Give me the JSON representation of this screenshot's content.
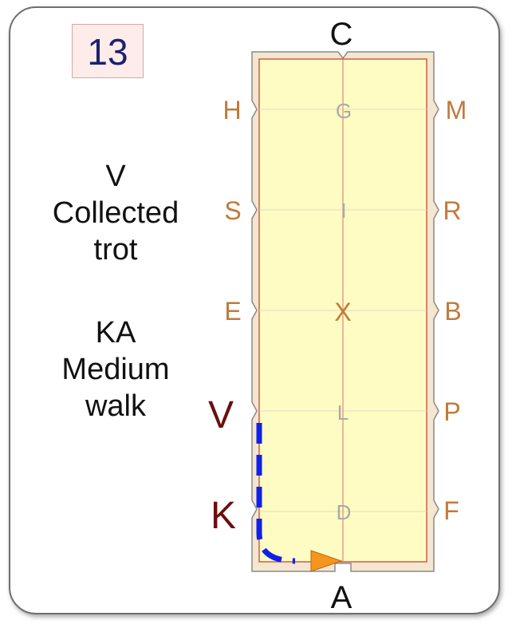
{
  "movement_number": "13",
  "instructions": [
    {
      "marker": "V",
      "lines": [
        "Collected",
        "trot"
      ]
    },
    {
      "marker": "KA",
      "lines": [
        "Medium",
        "walk"
      ]
    }
  ],
  "markers": {
    "C": "C",
    "A": "A",
    "H": "H",
    "S": "S",
    "E": "E",
    "V": "V",
    "K": "K",
    "M": "M",
    "R": "R",
    "B": "B",
    "P": "P",
    "F": "F",
    "G": "G",
    "I": "I",
    "X": "X",
    "L": "L",
    "D": "D"
  },
  "colors": {
    "arena_fill": "#fefcc2",
    "arena_border": "#c0392b",
    "surround": "#f5e6cf",
    "marker_text": "#c07a3b",
    "centerline_text": "#aaaaaa",
    "highlight_marker": "#6b0f0f",
    "route": "#1020e8",
    "arrow": "#f7941d"
  }
}
